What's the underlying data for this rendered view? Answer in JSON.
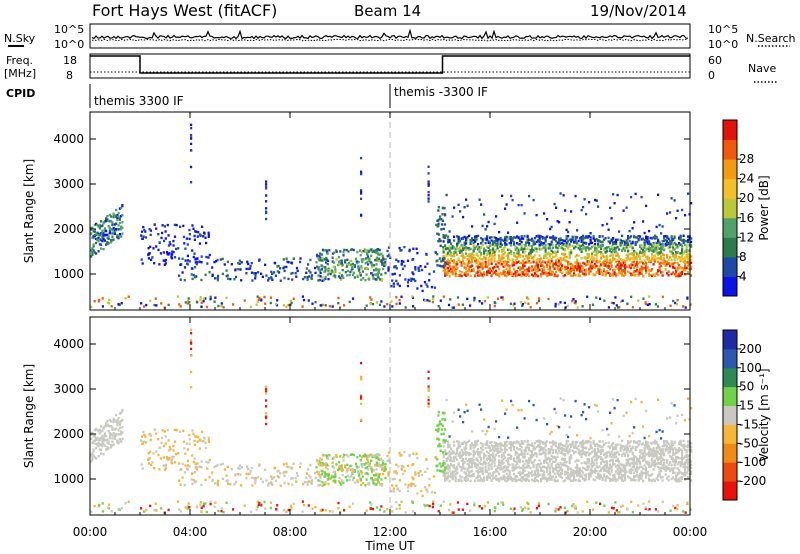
{
  "header": {
    "title": "Fort Hays West (fitACF)",
    "beam": "Beam 14",
    "date": "19/Nov/2014"
  },
  "noise_panel": {
    "left_label": "N.Sky",
    "left_ticks": [
      "10^5",
      "10^0"
    ],
    "right_label": "N.Search",
    "right_ticks": [
      "10^5",
      "10^0"
    ]
  },
  "freq_panel": {
    "left_label_1": "Freq.",
    "left_label_2": "[MHz]",
    "left_ticks": [
      "18",
      "8"
    ],
    "right_label": "Nave",
    "right_ticks": [
      "60",
      "0"
    ]
  },
  "cpid": {
    "label": "CPID",
    "segments": [
      {
        "label": "themis 3300 IF",
        "start_hour": 0
      },
      {
        "label": "themis -3300 IF",
        "start_hour": 12
      }
    ]
  },
  "colors": {
    "power": [
      "#0a14e6",
      "#1f49a8",
      "#2d7a4a",
      "#4fa26a",
      "#b9c93a",
      "#f2c02a",
      "#f39a12",
      "#f05a0c",
      "#e0140a"
    ],
    "velocity": [
      "#1c2aa6",
      "#2a5ab0",
      "#2e8a52",
      "#6fd24a",
      "#c9c9c2",
      "#f6b63a",
      "#f08a18",
      "#ee4a10",
      "#e8140c"
    ],
    "dashed_line": "#b8b8b8"
  },
  "chart_data": [
    {
      "type": "heatmap",
      "parameter": "power",
      "ylabel": "Slant Range [km]",
      "ylim": [
        200,
        4600
      ],
      "yticks": [
        "1000",
        "2000",
        "3000",
        "4000"
      ],
      "colorbar": {
        "label": "Power [dB]",
        "range": [
          0,
          32
        ],
        "tick_labels": [
          "4",
          "8",
          "12",
          "16",
          "20",
          "24",
          "28"
        ]
      }
    },
    {
      "type": "heatmap",
      "parameter": "velocity",
      "ylabel": "Slant Range [km]",
      "ylim": [
        200,
        4600
      ],
      "yticks": [
        "1000",
        "2000",
        "3000",
        "4000"
      ],
      "colorbar": {
        "label": "Velocity [m s⁻¹]",
        "tick_labels": [
          "200",
          "100",
          "50",
          "15",
          "-15",
          "-50",
          "-100",
          "-200"
        ]
      }
    }
  ],
  "x_axis": {
    "label": "Time UT",
    "ticks": [
      "00:00",
      "04:00",
      "08:00",
      "12:00",
      "16:00",
      "20:00",
      "00:00"
    ],
    "range_hours": [
      0,
      24
    ]
  }
}
